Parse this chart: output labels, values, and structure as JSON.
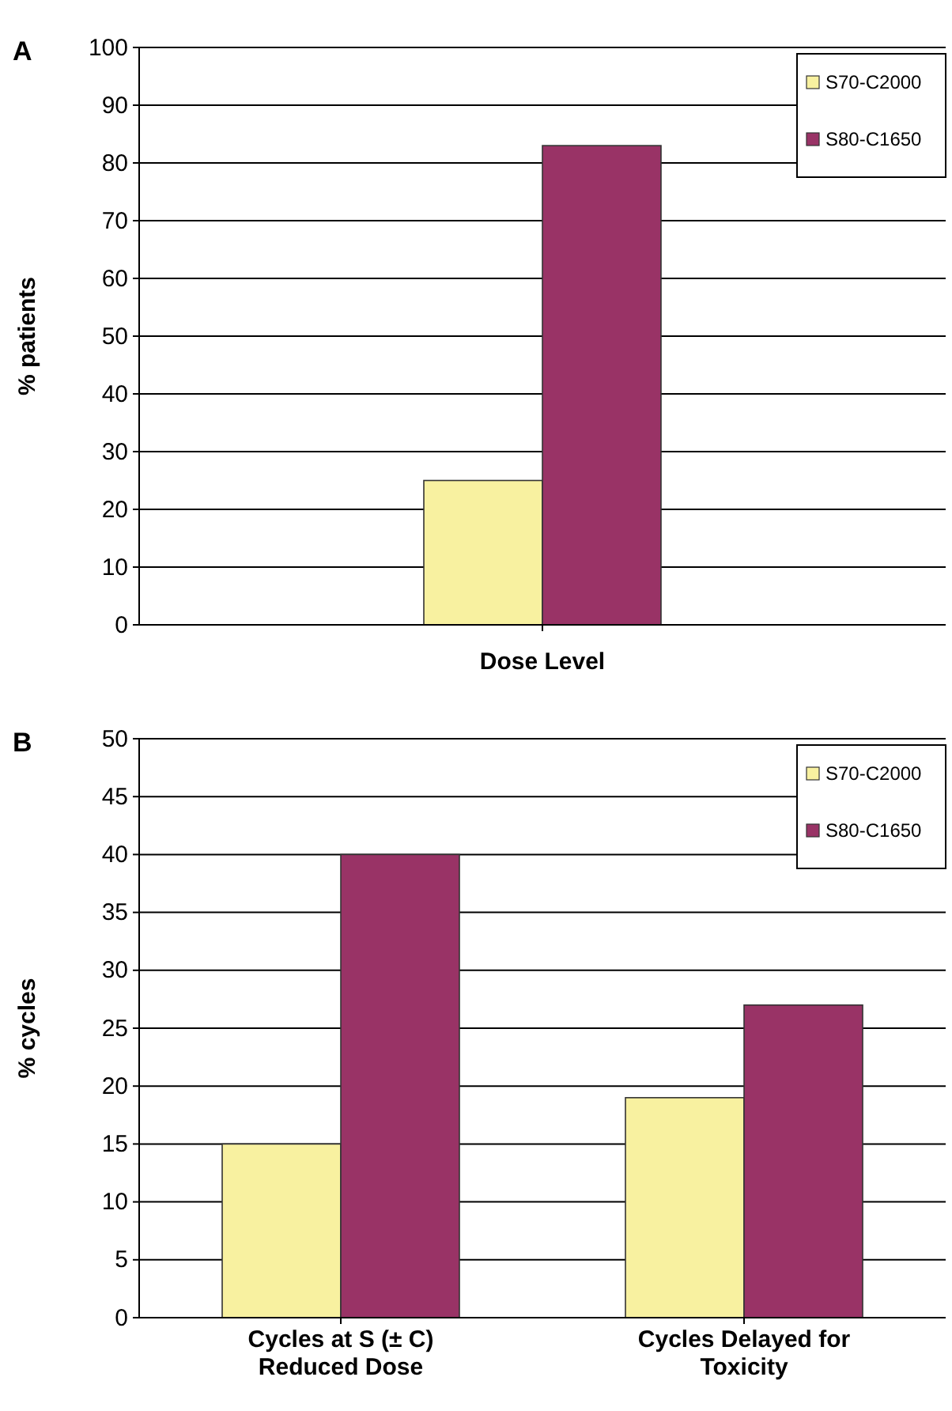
{
  "chart_data": [
    {
      "type": "bar",
      "title": "A",
      "xlabel": "Dose Level",
      "ylabel": "% patients",
      "categories": [
        null
      ],
      "series": [
        {
          "name": "S70-C2000",
          "color": "#f8f1a0",
          "values": [
            25
          ]
        },
        {
          "name": "S80-C1650",
          "color": "#993366",
          "values": [
            83
          ]
        }
      ],
      "ylim": [
        0,
        100
      ],
      "yticks": [
        0,
        10,
        20,
        30,
        40,
        50,
        60,
        70,
        80,
        90,
        100
      ],
      "grid": "y",
      "legend": "top right"
    },
    {
      "type": "bar",
      "title": "B",
      "ylabel": "% cycles",
      "categories": [
        "Cycles at S (± C) Reduced Dose",
        "Cycles Delayed for Toxicity"
      ],
      "series": [
        {
          "name": "S70-C2000",
          "color": "#f8f1a0",
          "values": [
            15,
            19
          ]
        },
        {
          "name": "S80-C1650",
          "color": "#993366",
          "values": [
            40,
            27
          ]
        }
      ],
      "ylim": [
        0,
        50
      ],
      "yticks": [
        0,
        5,
        10,
        15,
        20,
        25,
        30,
        35,
        40,
        45,
        50
      ],
      "grid": "y",
      "legend": "top right"
    }
  ]
}
